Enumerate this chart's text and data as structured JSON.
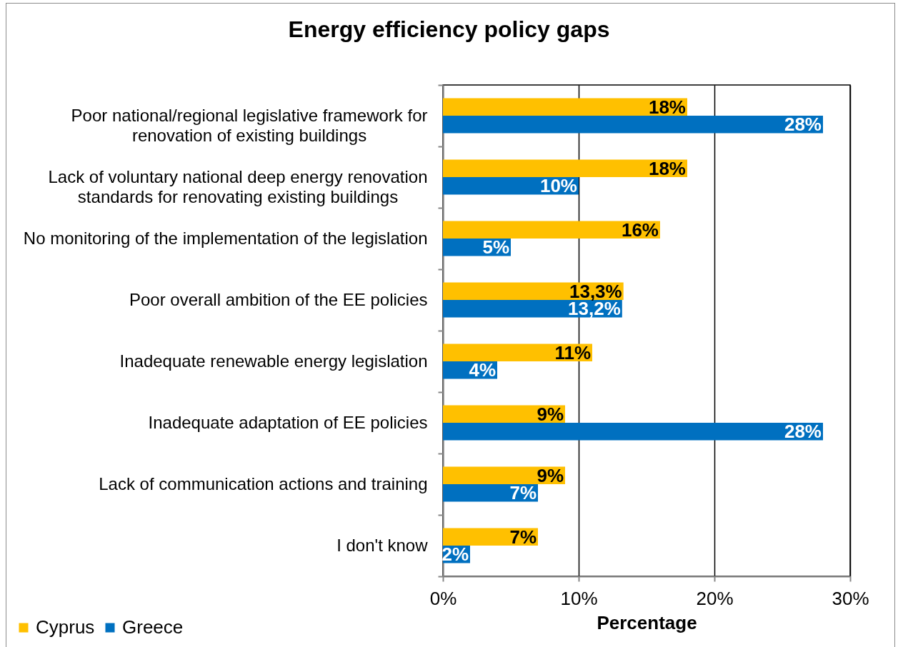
{
  "chart_data": {
    "type": "bar",
    "orientation": "horizontal",
    "title": "Energy efficiency policy gaps",
    "xlabel": "Percentage",
    "categories": [
      "Poor national/regional legislative framework for\nrenovation of existing buildings",
      "Lack of voluntary national deep energy renovation\nstandards for renovating existing buildings",
      "No monitoring of the implementation of the legislation",
      "Poor overall ambition of the EE policies",
      "Inadequate renewable energy legislation",
      "Inadequate adaptation of EE policies",
      "Lack of communication actions and training",
      "I don't know"
    ],
    "series": [
      {
        "name": "Cyprus",
        "color": "#ffc000",
        "values": [
          18,
          18,
          16,
          13.3,
          11,
          9,
          9,
          7
        ],
        "value_labels": [
          "18%",
          "18%",
          "16%",
          "13,3%",
          "11%",
          "9%",
          "9%",
          "7%"
        ]
      },
      {
        "name": "Greece",
        "color": "#0070c0",
        "values": [
          28,
          10,
          5,
          13.2,
          4,
          28,
          7,
          2
        ],
        "value_labels": [
          "28%",
          "10%",
          "5%",
          "13,2%",
          "4%",
          "28%",
          "7%",
          "2%"
        ]
      }
    ],
    "xlim": [
      0,
      30
    ],
    "xticks": [
      {
        "value": 0,
        "label": "0%"
      },
      {
        "value": 10,
        "label": "10%"
      },
      {
        "value": 20,
        "label": "20%"
      },
      {
        "value": 30,
        "label": "30%"
      }
    ],
    "grid": "x",
    "legend": "bottom left"
  }
}
